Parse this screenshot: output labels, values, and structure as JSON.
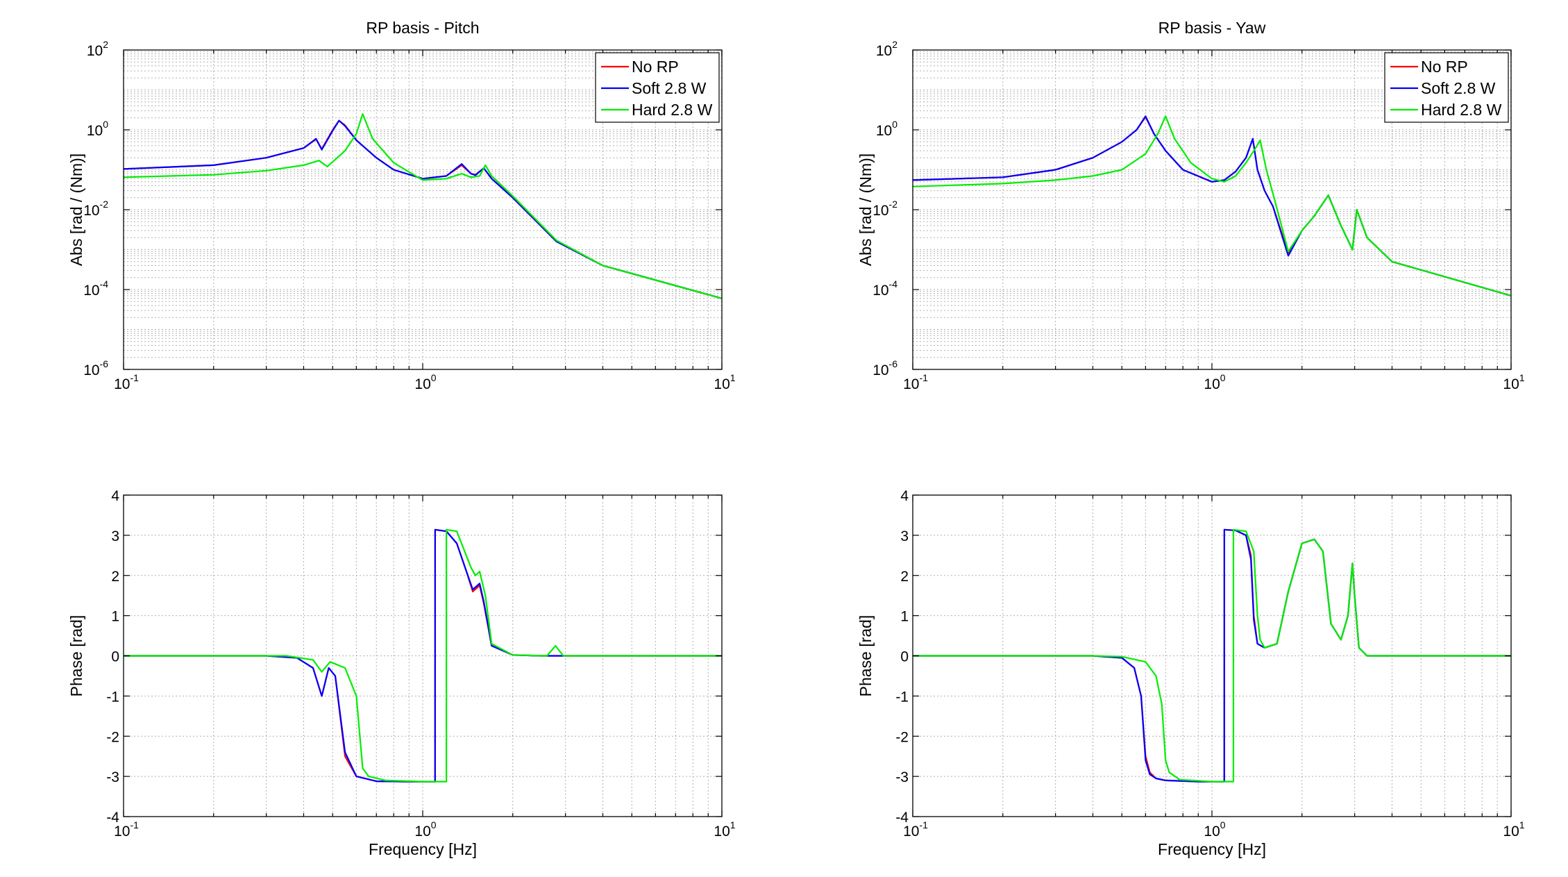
{
  "chart_data": [
    {
      "type": "line",
      "title": "RP basis - Pitch",
      "xlabel": "",
      "ylabel": "Abs [rad / (Nm)]",
      "xscale": "log",
      "yscale": "log",
      "xlim": [
        0.1,
        10
      ],
      "ylim": [
        1e-06,
        100
      ],
      "xticks": [
        {
          "base": "10",
          "exp": "-1"
        },
        {
          "base": "10",
          "exp": "0"
        },
        {
          "base": "10",
          "exp": "1"
        }
      ],
      "yticks": [
        {
          "base": "10",
          "exp": "-6"
        },
        {
          "base": "10",
          "exp": "-4"
        },
        {
          "base": "10",
          "exp": "-2"
        },
        {
          "base": "10",
          "exp": "0"
        },
        {
          "base": "10",
          "exp": "2"
        }
      ],
      "grid": true,
      "legend": "top-right",
      "series": [
        {
          "name": "No RP",
          "color": "#ff0000",
          "x": [
            0.1,
            0.2,
            0.3,
            0.4,
            0.44,
            0.46,
            0.5,
            0.525,
            0.55,
            0.6,
            0.7,
            0.8,
            1.0,
            1.2,
            1.35,
            1.45,
            1.5,
            1.6,
            1.7,
            2.0,
            2.8,
            4.0,
            10.0
          ],
          "y": [
            0.105,
            0.13,
            0.2,
            0.35,
            0.58,
            0.33,
            1.0,
            1.7,
            1.3,
            0.55,
            0.2,
            0.1,
            0.06,
            0.07,
            0.13,
            0.08,
            0.075,
            0.11,
            0.06,
            0.02,
            0.0016,
            0.0004,
            6e-05
          ]
        },
        {
          "name": "Soft 2.8 W",
          "color": "#0000ff",
          "x": [
            0.1,
            0.2,
            0.3,
            0.4,
            0.44,
            0.46,
            0.5,
            0.525,
            0.55,
            0.6,
            0.7,
            0.8,
            1.0,
            1.2,
            1.35,
            1.45,
            1.5,
            1.6,
            1.7,
            2.0,
            2.8,
            4.0,
            10.0
          ],
          "y": [
            0.105,
            0.13,
            0.2,
            0.35,
            0.6,
            0.32,
            0.95,
            1.7,
            1.25,
            0.55,
            0.2,
            0.1,
            0.06,
            0.07,
            0.14,
            0.08,
            0.073,
            0.11,
            0.06,
            0.02,
            0.0016,
            0.0004,
            6e-05
          ]
        },
        {
          "name": "Hard 2.8 W",
          "color": "#00ee00",
          "x": [
            0.1,
            0.2,
            0.3,
            0.4,
            0.45,
            0.48,
            0.55,
            0.6,
            0.63,
            0.68,
            0.8,
            1.0,
            1.2,
            1.35,
            1.45,
            1.55,
            1.62,
            1.7,
            2.0,
            2.8,
            4.0,
            10.0
          ],
          "y": [
            0.065,
            0.075,
            0.095,
            0.13,
            0.17,
            0.12,
            0.3,
            0.8,
            2.5,
            0.6,
            0.15,
            0.055,
            0.06,
            0.08,
            0.065,
            0.07,
            0.13,
            0.07,
            0.022,
            0.0017,
            0.0004,
            6e-05
          ]
        }
      ]
    },
    {
      "type": "line",
      "title": "RP basis - Yaw",
      "xlabel": "",
      "ylabel": "Abs [rad / (Nm)]",
      "xscale": "log",
      "yscale": "log",
      "xlim": [
        0.1,
        10
      ],
      "ylim": [
        1e-06,
        100
      ],
      "xticks": [
        {
          "base": "10",
          "exp": "-1"
        },
        {
          "base": "10",
          "exp": "0"
        },
        {
          "base": "10",
          "exp": "1"
        }
      ],
      "yticks": [
        {
          "base": "10",
          "exp": "-6"
        },
        {
          "base": "10",
          "exp": "-4"
        },
        {
          "base": "10",
          "exp": "-2"
        },
        {
          "base": "10",
          "exp": "0"
        },
        {
          "base": "10",
          "exp": "2"
        }
      ],
      "grid": true,
      "legend": "top-right",
      "series": [
        {
          "name": "No RP",
          "color": "#ff0000",
          "x": [
            0.1,
            0.2,
            0.3,
            0.4,
            0.5,
            0.56,
            0.6,
            0.64,
            0.7,
            0.8,
            1.0,
            1.1,
            1.2,
            1.3,
            1.37,
            1.42,
            1.5,
            1.6,
            1.8,
            2.0,
            2.2,
            2.45,
            2.7,
            2.95,
            3.05,
            3.3,
            4.0,
            10.0
          ],
          "y": [
            0.055,
            0.065,
            0.1,
            0.2,
            0.5,
            1.0,
            2.1,
            0.8,
            0.3,
            0.1,
            0.05,
            0.055,
            0.09,
            0.2,
            0.6,
            0.1,
            0.03,
            0.012,
            0.0008,
            0.003,
            0.007,
            0.023,
            0.004,
            0.001,
            0.01,
            0.002,
            0.0005,
            7e-05
          ]
        },
        {
          "name": "Soft 2.8 W",
          "color": "#0000ff",
          "x": [
            0.1,
            0.2,
            0.3,
            0.4,
            0.5,
            0.56,
            0.6,
            0.64,
            0.7,
            0.8,
            1.0,
            1.1,
            1.2,
            1.3,
            1.37,
            1.42,
            1.5,
            1.6,
            1.8,
            2.0,
            2.2,
            2.45,
            2.7,
            2.95,
            3.05,
            3.3,
            4.0,
            10.0
          ],
          "y": [
            0.055,
            0.065,
            0.1,
            0.2,
            0.5,
            1.0,
            2.2,
            0.8,
            0.3,
            0.1,
            0.05,
            0.055,
            0.09,
            0.2,
            0.6,
            0.1,
            0.03,
            0.012,
            0.0007,
            0.003,
            0.007,
            0.023,
            0.004,
            0.001,
            0.01,
            0.002,
            0.0005,
            7e-05
          ]
        },
        {
          "name": "Hard 2.8 W",
          "color": "#00ee00",
          "x": [
            0.1,
            0.2,
            0.3,
            0.4,
            0.5,
            0.6,
            0.66,
            0.7,
            0.75,
            0.85,
            1.0,
            1.1,
            1.2,
            1.3,
            1.4,
            1.45,
            1.52,
            1.6,
            1.8,
            2.0,
            2.2,
            2.45,
            2.7,
            2.95,
            3.05,
            3.3,
            4.0,
            10.0
          ],
          "y": [
            0.038,
            0.045,
            0.055,
            0.07,
            0.1,
            0.25,
            0.8,
            2.2,
            0.6,
            0.15,
            0.06,
            0.05,
            0.07,
            0.15,
            0.35,
            0.55,
            0.1,
            0.025,
            0.0009,
            0.003,
            0.007,
            0.023,
            0.004,
            0.001,
            0.01,
            0.002,
            0.0005,
            7e-05
          ]
        }
      ]
    },
    {
      "type": "line",
      "title": "",
      "xlabel": "Frequency [Hz]",
      "ylabel": "Phase [rad]",
      "xscale": "log",
      "yscale": "linear",
      "xlim": [
        0.1,
        10
      ],
      "ylim": [
        -4,
        4
      ],
      "xticks": [
        {
          "base": "10",
          "exp": "-1"
        },
        {
          "base": "10",
          "exp": "0"
        },
        {
          "base": "10",
          "exp": "1"
        }
      ],
      "yticks": [
        {
          "base": "4",
          "exp": ""
        },
        {
          "base": "3",
          "exp": ""
        },
        {
          "base": "2",
          "exp": ""
        },
        {
          "base": "1",
          "exp": ""
        },
        {
          "base": "0",
          "exp": ""
        },
        {
          "base": "-1",
          "exp": ""
        },
        {
          "base": "-2",
          "exp": ""
        },
        {
          "base": "-3",
          "exp": ""
        },
        {
          "base": "-4",
          "exp": ""
        }
      ],
      "grid": true,
      "series": [
        {
          "name": "No RP",
          "color": "#ff0000",
          "x": [
            0.1,
            0.3,
            0.38,
            0.43,
            0.46,
            0.485,
            0.51,
            0.55,
            0.6,
            0.7,
            0.9,
            1.1,
            1.1001,
            1.2,
            1.3,
            1.4,
            1.47,
            1.55,
            1.6,
            1.7,
            2.0,
            2.5,
            10.0
          ],
          "y": [
            0,
            0,
            -0.05,
            -0.3,
            -1.0,
            -0.3,
            -0.5,
            -2.5,
            -3.0,
            -3.12,
            -3.13,
            -3.13,
            3.14,
            3.1,
            2.8,
            2.1,
            1.6,
            1.75,
            1.3,
            0.25,
            0.02,
            0,
            0
          ]
        },
        {
          "name": "Soft 2.8 W",
          "color": "#0000ff",
          "x": [
            0.1,
            0.3,
            0.38,
            0.43,
            0.46,
            0.485,
            0.51,
            0.55,
            0.6,
            0.7,
            0.9,
            1.1,
            1.1001,
            1.2,
            1.3,
            1.4,
            1.47,
            1.55,
            1.6,
            1.7,
            2.0,
            2.5,
            10.0
          ],
          "y": [
            0,
            0,
            -0.05,
            -0.3,
            -1.0,
            -0.3,
            -0.5,
            -2.4,
            -3.0,
            -3.12,
            -3.13,
            -3.13,
            3.14,
            3.1,
            2.8,
            2.1,
            1.65,
            1.8,
            1.35,
            0.25,
            0.02,
            0,
            0
          ]
        },
        {
          "name": "Hard 2.8 W",
          "color": "#00ee00",
          "x": [
            0.1,
            0.35,
            0.43,
            0.46,
            0.49,
            0.55,
            0.6,
            0.63,
            0.66,
            0.75,
            1.0,
            1.2,
            1.2001,
            1.3,
            1.45,
            1.5,
            1.55,
            1.62,
            1.7,
            2.0,
            2.6,
            2.78,
            2.95,
            10.0
          ],
          "y": [
            0,
            0,
            -0.1,
            -0.4,
            -0.15,
            -0.3,
            -1.0,
            -2.8,
            -3.0,
            -3.1,
            -3.13,
            -3.13,
            3.14,
            3.1,
            2.2,
            2.0,
            2.1,
            1.5,
            0.3,
            0.02,
            0,
            0.25,
            0,
            0
          ]
        }
      ]
    },
    {
      "type": "line",
      "title": "",
      "xlabel": "Frequency [Hz]",
      "ylabel": "Phase [rad]",
      "xscale": "log",
      "yscale": "linear",
      "xlim": [
        0.1,
        10
      ],
      "ylim": [
        -4,
        4
      ],
      "xticks": [
        {
          "base": "10",
          "exp": "-1"
        },
        {
          "base": "10",
          "exp": "0"
        },
        {
          "base": "10",
          "exp": "1"
        }
      ],
      "yticks": [
        {
          "base": "4",
          "exp": ""
        },
        {
          "base": "3",
          "exp": ""
        },
        {
          "base": "2",
          "exp": ""
        },
        {
          "base": "1",
          "exp": ""
        },
        {
          "base": "0",
          "exp": ""
        },
        {
          "base": "-1",
          "exp": ""
        },
        {
          "base": "-2",
          "exp": ""
        },
        {
          "base": "-3",
          "exp": ""
        },
        {
          "base": "-4",
          "exp": ""
        }
      ],
      "grid": true,
      "series": [
        {
          "name": "No RP",
          "color": "#ff0000",
          "x": [
            0.1,
            0.4,
            0.5,
            0.55,
            0.58,
            0.6,
            0.62,
            0.65,
            0.7,
            0.9,
            1.1,
            1.1001,
            1.2,
            1.3,
            1.35,
            1.38,
            1.42,
            1.5,
            1.65,
            1.8,
            2.0,
            2.2,
            2.35,
            2.5,
            2.7,
            2.85,
            2.95,
            3.0,
            3.1,
            3.3,
            10.0
          ],
          "y": [
            0,
            0,
            -0.05,
            -0.3,
            -1.0,
            -2.5,
            -2.9,
            -3.05,
            -3.1,
            -3.13,
            -3.13,
            3.14,
            3.12,
            3.0,
            2.5,
            1.0,
            0.3,
            0.2,
            0.3,
            1.6,
            2.8,
            2.9,
            2.6,
            0.8,
            0.4,
            1.0,
            2.3,
            1.5,
            0.2,
            0.0,
            0
          ]
        },
        {
          "name": "Soft 2.8 W",
          "color": "#0000ff",
          "x": [
            0.1,
            0.4,
            0.5,
            0.55,
            0.58,
            0.6,
            0.62,
            0.65,
            0.7,
            0.9,
            1.1,
            1.1001,
            1.2,
            1.3,
            1.35,
            1.38,
            1.42,
            1.5,
            1.65,
            1.8,
            2.0,
            2.2,
            2.35,
            2.5,
            2.7,
            2.85,
            2.95,
            3.0,
            3.1,
            3.3,
            10.0
          ],
          "y": [
            0,
            0,
            -0.05,
            -0.3,
            -1.0,
            -2.6,
            -2.95,
            -3.05,
            -3.1,
            -3.13,
            -3.13,
            3.14,
            3.12,
            3.0,
            2.4,
            0.9,
            0.3,
            0.2,
            0.3,
            1.6,
            2.8,
            2.9,
            2.6,
            0.8,
            0.4,
            1.0,
            2.3,
            1.5,
            0.2,
            0.0,
            0
          ]
        },
        {
          "name": "Hard 2.8 W",
          "color": "#00ee00",
          "x": [
            0.1,
            0.4,
            0.5,
            0.6,
            0.65,
            0.68,
            0.7,
            0.72,
            0.78,
            1.0,
            1.18,
            1.1801,
            1.3,
            1.38,
            1.42,
            1.45,
            1.5,
            1.65,
            1.8,
            2.0,
            2.2,
            2.35,
            2.5,
            2.7,
            2.85,
            2.95,
            3.0,
            3.1,
            3.3,
            10.0
          ],
          "y": [
            0,
            0,
            -0.02,
            -0.15,
            -0.5,
            -1.2,
            -2.6,
            -2.9,
            -3.08,
            -3.13,
            -3.13,
            3.14,
            3.1,
            2.6,
            1.0,
            0.4,
            0.2,
            0.3,
            1.6,
            2.8,
            2.9,
            2.6,
            0.8,
            0.4,
            1.0,
            2.3,
            1.5,
            0.2,
            0.0,
            0
          ]
        }
      ]
    }
  ]
}
